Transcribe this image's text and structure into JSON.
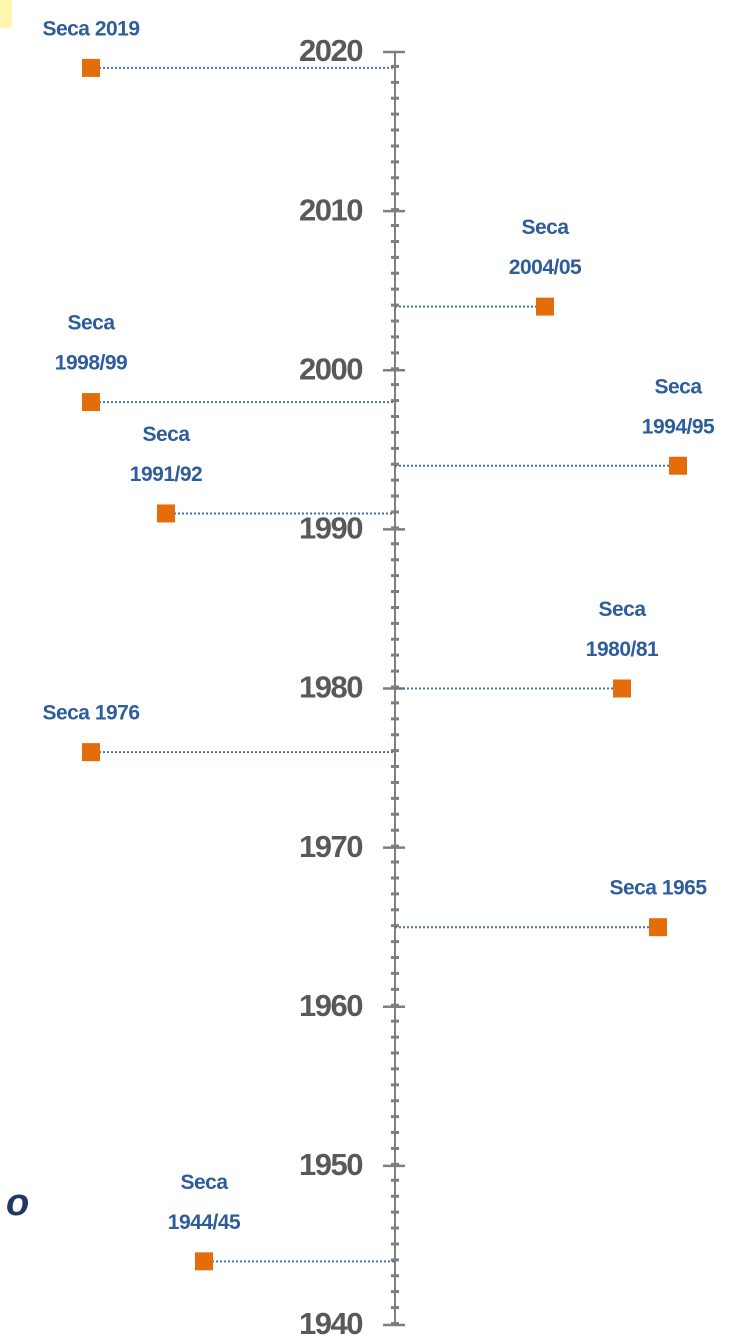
{
  "chart_data": {
    "type": "timeline",
    "ylim": [
      1940,
      2020
    ],
    "yticks": [
      2020,
      2010,
      2000,
      1990,
      1980,
      1970,
      1960,
      1950,
      1940
    ],
    "marker_color": "#e46c0a",
    "label_color": "#2e5d9c",
    "connector_color": "#4a72a8",
    "events": [
      {
        "label": [
          "Seca 2019"
        ],
        "year": 2019
      },
      {
        "label": [
          "Seca",
          "2004/05"
        ],
        "year": 2004
      },
      {
        "label": [
          "Seca",
          "1998/99"
        ],
        "year": 1998
      },
      {
        "label": [
          "Seca",
          "1994/95"
        ],
        "year": 1994
      },
      {
        "label": [
          "Seca",
          "1991/92"
        ],
        "year": 1991
      },
      {
        "label": [
          "Seca",
          "1980/81"
        ],
        "year": 1980
      },
      {
        "label": [
          "Seca 1976"
        ],
        "year": 1976
      },
      {
        "label": [
          "Seca 1965"
        ],
        "year": 1965
      },
      {
        "label": [
          "Seca",
          "1944/45"
        ],
        "year": 1944
      }
    ],
    "annotation": "o"
  }
}
